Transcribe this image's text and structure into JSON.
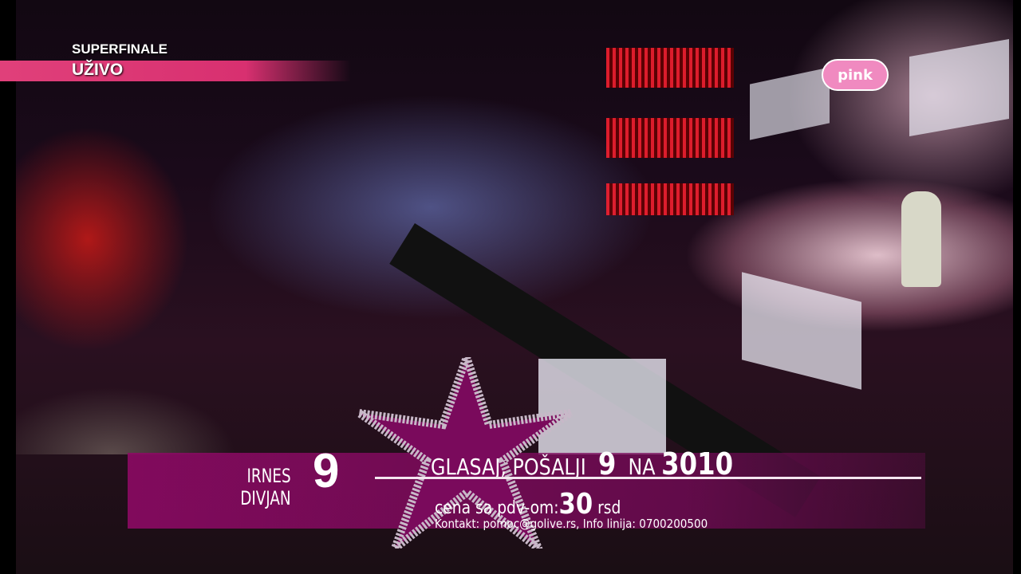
{
  "broadcast": {
    "channel_logo": "pink",
    "show_label": "SUPERFINALE",
    "live_label": "UŽIVO"
  },
  "lower_third": {
    "contestant_first_name": "IRNES",
    "contestant_last_name": "DIVJAN",
    "contestant_number": "9",
    "vote_text": "GLASAJ, POŠALJI",
    "vote_number": "9",
    "to_text": "NA",
    "sms_number": "3010",
    "price_label": "cena sa pdv-om:",
    "price_value": "30",
    "price_currency": "rsd",
    "contact": "Kontakt: pomoc@golive.rs, Info linija: 0700200500"
  },
  "colors": {
    "accent_pink": "#d83070",
    "band_purple": "#8c0a64"
  }
}
